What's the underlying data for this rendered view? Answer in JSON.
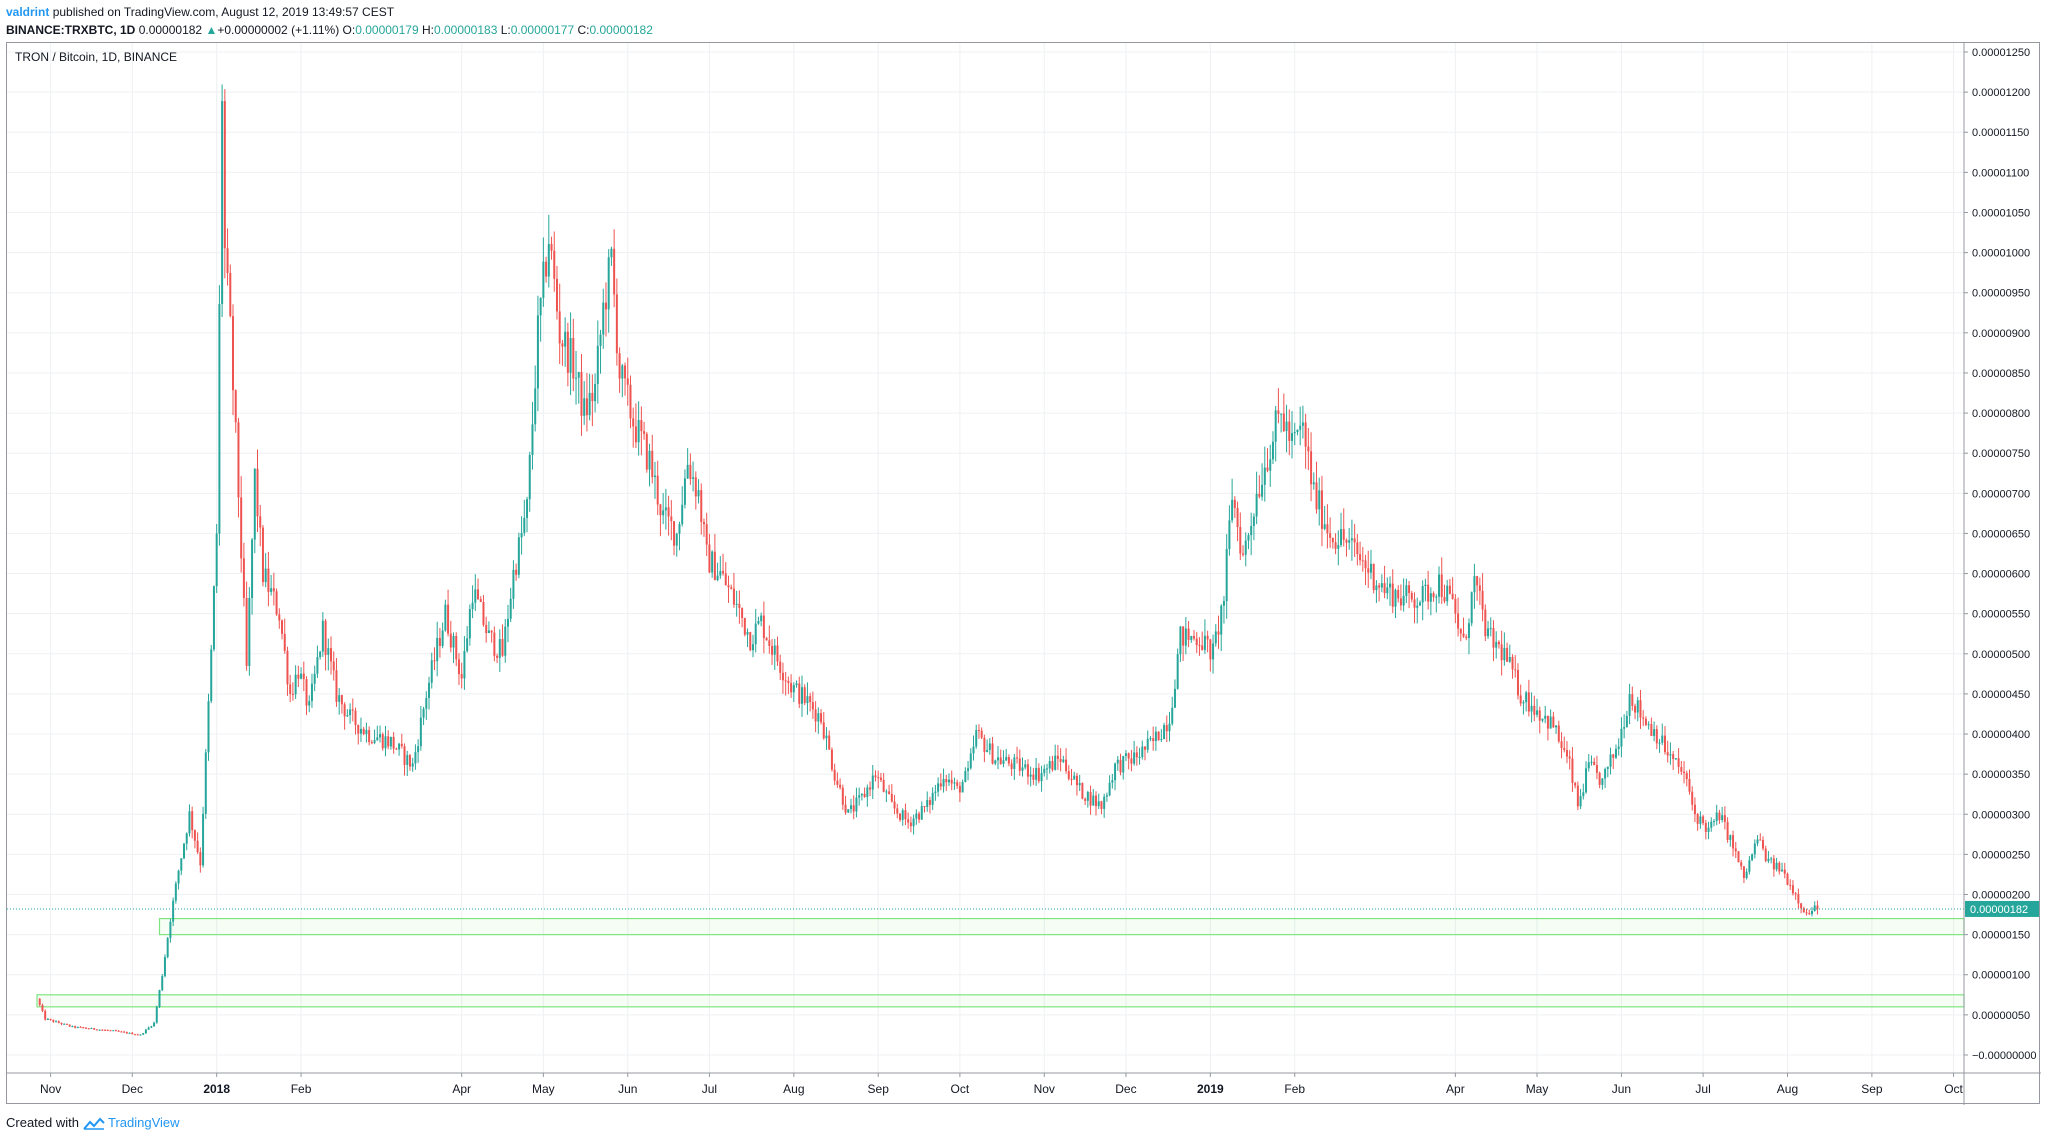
{
  "header": {
    "user": "valdrint",
    "published_text": "published on TradingView.com, August 12, 2019 13:49:57 CEST",
    "symbol_line": "BINANCE:TRXBTC, 1D",
    "last_value": "0.00000182",
    "change_arrow": "▲",
    "change": "+0.00000002 (+1.11%)",
    "open_label": "O:",
    "open": "0.00000179",
    "high_label": "H:",
    "high": "0.00000183",
    "low_label": "L:",
    "low": "0.00000177",
    "close_label": "C:",
    "close": "0.00000182"
  },
  "chart_title": "TRON / Bitcoin, 1D, BINANCE",
  "footer": {
    "created_with": "Created with",
    "brand": "TradingView"
  },
  "colors": {
    "up": "#26a69a",
    "down": "#ef5350",
    "grid": "#eef0f3",
    "axis_text": "#131722",
    "support_zone": "#7ee57e",
    "price_line": "#2ba1a3",
    "price_label_bg": "#26a69a"
  },
  "chart_data": {
    "type": "candlestick",
    "title": "TRON / Bitcoin, 1D, BINANCE",
    "ylim": [
      -1e-07,
      1.255e-05
    ],
    "y_ticks": [
      "0.00001250",
      "0.00001200",
      "0.00001150",
      "0.00001100",
      "0.00001050",
      "0.00001000",
      "0.00000950",
      "0.00000900",
      "0.00000850",
      "0.00000800",
      "0.00000750",
      "0.00000700",
      "0.00000650",
      "0.00000600",
      "0.00000550",
      "0.00000500",
      "0.00000450",
      "0.00000400",
      "0.00000350",
      "0.00000300",
      "0.00000250",
      "0.00000200",
      "0.00000150",
      "0.00000100",
      "0.00000050",
      "−0.00000000"
    ],
    "x_labels": [
      "Nov",
      "Dec",
      "2018",
      "Feb",
      "Apr",
      "May",
      "Jun",
      "Jul",
      "Aug",
      "Sep",
      "Oct",
      "Nov",
      "Dec",
      "2019",
      "Feb",
      "Apr",
      "May",
      "Jun",
      "Jul",
      "Aug",
      "Sep",
      "Oct"
    ],
    "bold_x_labels": [
      "2018",
      "2019"
    ],
    "x_range": [
      "2017-10-27",
      "2019-10-03"
    ],
    "last_price": 1.82e-06,
    "last_price_label": "0.00000182",
    "support_zones": [
      {
        "from_date": "2017-12-11",
        "low": 1.5e-06,
        "high": 1.7e-06
      },
      {
        "from_date": "2017-10-27",
        "low": 6e-07,
        "high": 7.5e-07
      }
    ],
    "price_path": [
      [
        "2017-10-28",
        7e-07
      ],
      [
        "2017-10-31",
        4.5e-07
      ],
      [
        "2017-11-10",
        3.5e-07
      ],
      [
        "2017-11-25",
        3e-07
      ],
      [
        "2017-12-05",
        2.5e-07
      ],
      [
        "2017-12-10",
        4e-07
      ],
      [
        "2017-12-13",
        1e-06
      ],
      [
        "2017-12-16",
        1.7e-06
      ],
      [
        "2017-12-19",
        2.3e-06
      ],
      [
        "2017-12-23",
        3e-06
      ],
      [
        "2017-12-27",
        2.4e-06
      ],
      [
        "2017-12-31",
        5e-06
      ],
      [
        "2018-01-02",
        6.5e-06
      ],
      [
        "2018-01-04",
        1.2e-05
      ],
      [
        "2018-01-05",
        1e-05
      ],
      [
        "2018-01-07",
        9e-06
      ],
      [
        "2018-01-10",
        7e-06
      ],
      [
        "2018-01-13",
        4.8e-06
      ],
      [
        "2018-01-16",
        7.2e-06
      ],
      [
        "2018-01-19",
        6e-06
      ],
      [
        "2018-01-25",
        5.5e-06
      ],
      [
        "2018-01-29",
        4.5e-06
      ],
      [
        "2018-02-01",
        4.8e-06
      ],
      [
        "2018-02-05",
        4.3e-06
      ],
      [
        "2018-02-10",
        5.3e-06
      ],
      [
        "2018-02-15",
        4.5e-06
      ],
      [
        "2018-02-20",
        4.2e-06
      ],
      [
        "2018-02-27",
        4e-06
      ],
      [
        "2018-03-07",
        3.9e-06
      ],
      [
        "2018-03-15",
        3.6e-06
      ],
      [
        "2018-03-20",
        4.5e-06
      ],
      [
        "2018-03-27",
        5.5e-06
      ],
      [
        "2018-04-02",
        4.7e-06
      ],
      [
        "2018-04-06",
        5.8e-06
      ],
      [
        "2018-04-12",
        5.2e-06
      ],
      [
        "2018-04-17",
        5e-06
      ],
      [
        "2018-04-21",
        6e-06
      ],
      [
        "2018-04-26",
        6.8e-06
      ],
      [
        "2018-04-30",
        9e-06
      ],
      [
        "2018-05-04",
        1.02e-05
      ],
      [
        "2018-05-08",
        9e-06
      ],
      [
        "2018-05-13",
        8.6e-06
      ],
      [
        "2018-05-17",
        8e-06
      ],
      [
        "2018-05-21",
        8.3e-06
      ],
      [
        "2018-05-24",
        9.3e-06
      ],
      [
        "2018-05-27",
        9.9e-06
      ],
      [
        "2018-05-30",
        8.5e-06
      ],
      [
        "2018-06-04",
        7.9e-06
      ],
      [
        "2018-06-10",
        7.4e-06
      ],
      [
        "2018-06-15",
        6.7e-06
      ],
      [
        "2018-06-20",
        6.5e-06
      ],
      [
        "2018-06-24",
        7.4e-06
      ],
      [
        "2018-06-28",
        7e-06
      ],
      [
        "2018-07-01",
        6.2e-06
      ],
      [
        "2018-07-06",
        6e-06
      ],
      [
        "2018-07-12",
        5.6e-06
      ],
      [
        "2018-07-17",
        5.2e-06
      ],
      [
        "2018-07-21",
        5.4e-06
      ],
      [
        "2018-07-26",
        5e-06
      ],
      [
        "2018-08-01",
        4.6e-06
      ],
      [
        "2018-08-07",
        4.4e-06
      ],
      [
        "2018-08-12",
        4.2e-06
      ],
      [
        "2018-08-17",
        3.5e-06
      ],
      [
        "2018-08-22",
        3e-06
      ],
      [
        "2018-08-27",
        3.2e-06
      ],
      [
        "2018-09-01",
        3.5e-06
      ],
      [
        "2018-09-07",
        3.1e-06
      ],
      [
        "2018-09-13",
        2.9e-06
      ],
      [
        "2018-09-20",
        3.1e-06
      ],
      [
        "2018-09-26",
        3.5e-06
      ],
      [
        "2018-10-01",
        3.3e-06
      ],
      [
        "2018-10-05",
        3.5e-06
      ],
      [
        "2018-10-08",
        4e-06
      ],
      [
        "2018-10-15",
        3.7e-06
      ],
      [
        "2018-10-23",
        3.6e-06
      ],
      [
        "2018-10-31",
        3.5e-06
      ],
      [
        "2018-11-08",
        3.7e-06
      ],
      [
        "2018-11-15",
        3.3e-06
      ],
      [
        "2018-11-23",
        3.1e-06
      ],
      [
        "2018-11-28",
        3.6e-06
      ],
      [
        "2018-12-05",
        3.7e-06
      ],
      [
        "2018-12-12",
        3.9e-06
      ],
      [
        "2018-12-18",
        4.2e-06
      ],
      [
        "2018-12-22",
        5.2e-06
      ],
      [
        "2018-12-29",
        5.2e-06
      ],
      [
        "2019-01-03",
        5e-06
      ],
      [
        "2019-01-07",
        5.7e-06
      ],
      [
        "2019-01-10",
        7e-06
      ],
      [
        "2019-01-14",
        6.2e-06
      ],
      [
        "2019-01-19",
        7e-06
      ],
      [
        "2019-01-24",
        7.6e-06
      ],
      [
        "2019-01-28",
        8e-06
      ],
      [
        "2019-02-01",
        7.6e-06
      ],
      [
        "2019-02-05",
        7.8e-06
      ],
      [
        "2019-02-09",
        7e-06
      ],
      [
        "2019-02-15",
        6.5e-06
      ],
      [
        "2019-02-21",
        6.4e-06
      ],
      [
        "2019-02-28",
        6.1e-06
      ],
      [
        "2019-03-07",
        5.8e-06
      ],
      [
        "2019-03-14",
        5.7e-06
      ],
      [
        "2019-03-21",
        5.7e-06
      ],
      [
        "2019-03-27",
        5.9e-06
      ],
      [
        "2019-04-01",
        5.6e-06
      ],
      [
        "2019-04-05",
        5.1e-06
      ],
      [
        "2019-04-09",
        5.9e-06
      ],
      [
        "2019-04-14",
        5.2e-06
      ],
      [
        "2019-04-20",
        5e-06
      ],
      [
        "2019-04-26",
        4.5e-06
      ],
      [
        "2019-05-02",
        4.3e-06
      ],
      [
        "2019-05-08",
        4.1e-06
      ],
      [
        "2019-05-14",
        3.6e-06
      ],
      [
        "2019-05-17",
        3.1e-06
      ],
      [
        "2019-05-21",
        3.6e-06
      ],
      [
        "2019-05-26",
        3.4e-06
      ],
      [
        "2019-06-01",
        3.9e-06
      ],
      [
        "2019-06-05",
        4.5e-06
      ],
      [
        "2019-06-10",
        4.2e-06
      ],
      [
        "2019-06-15",
        4e-06
      ],
      [
        "2019-06-20",
        3.7e-06
      ],
      [
        "2019-06-25",
        3.5e-06
      ],
      [
        "2019-06-29",
        3e-06
      ],
      [
        "2019-07-04",
        2.8e-06
      ],
      [
        "2019-07-08",
        3e-06
      ],
      [
        "2019-07-13",
        2.6e-06
      ],
      [
        "2019-07-17",
        2.2e-06
      ],
      [
        "2019-07-22",
        2.7e-06
      ],
      [
        "2019-07-26",
        2.4e-06
      ],
      [
        "2019-07-31",
        2.3e-06
      ],
      [
        "2019-08-05",
        2e-06
      ],
      [
        "2019-08-09",
        1.75e-06
      ],
      [
        "2019-08-12",
        1.82e-06
      ]
    ]
  }
}
